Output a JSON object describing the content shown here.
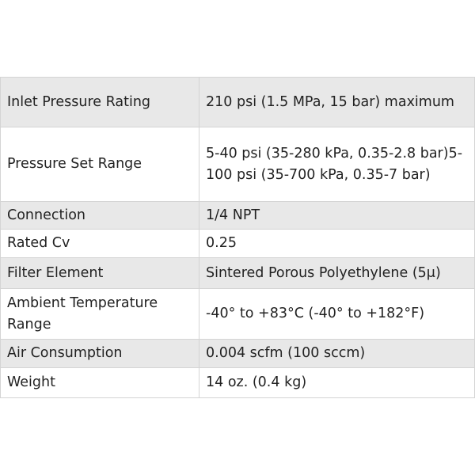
{
  "table": {
    "rows": [
      [
        "Inlet Pressure Rating",
        "210 psi (1.5 MPa, 15 bar) maximum"
      ],
      [
        "Pressure Set Range",
        "5-40 psi (35-280 kPa, 0.35-2.8 bar)5-100 psi (35-700 kPa, 0.35-7 bar)"
      ],
      [
        "Connection",
        "1/4 NPT"
      ],
      [
        "Rated Cv",
        "0.25"
      ],
      [
        "Filter Element",
        "Sintered Porous Polyethylene (5μ)"
      ],
      [
        "Ambient Temperature Range",
        "-40° to +83°C (-40° to +182°F)"
      ],
      [
        "Air Consumption",
        "0.004 scfm (100 sccm)"
      ],
      [
        "Weight",
        "14 oz. (0.4 kg)"
      ]
    ]
  }
}
